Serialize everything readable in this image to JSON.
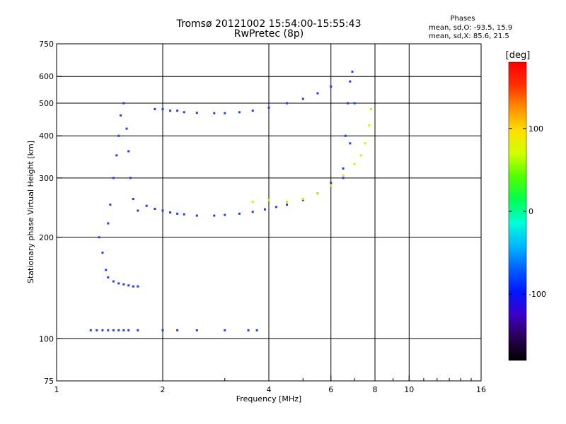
{
  "chart_data": {
    "type": "scatter",
    "title": "Tromsø 20121002 15:54:00-15:55:43",
    "subtitle": "RwPretec (8p)",
    "xlabel": "Frequency [MHz]",
    "ylabel": "Stationary phase Virtual Height [km]",
    "x_scale": "log",
    "y_scale": "log",
    "xlim": [
      1,
      16
    ],
    "ylim": [
      75,
      750
    ],
    "x_ticks": [
      1,
      2,
      4,
      6,
      8,
      10,
      16
    ],
    "y_ticks": [
      75,
      100,
      200,
      300,
      400,
      500,
      600,
      750
    ],
    "grid": true,
    "phases_box": {
      "title": "Phases",
      "line1": "mean, sd,O: -93.5, 15.9",
      "line2": "mean, sd,X:  85.6, 21.5"
    },
    "colorbar": {
      "label": "[deg]",
      "ticks": [
        100,
        0,
        -100
      ],
      "range": [
        -180,
        180
      ],
      "colors": [
        "#000000",
        "#2a0055",
        "#3c00c8",
        "#0018ff",
        "#0060ff",
        "#00b8ff",
        "#00ffd8",
        "#00ff50",
        "#50ff00",
        "#d0ff00",
        "#ffe000",
        "#ff9000",
        "#ff3000",
        "#ff0000"
      ]
    },
    "series": [
      {
        "color": "#1f3dff",
        "x": [
          1.25,
          1.3,
          1.35,
          1.4,
          1.45,
          1.5,
          1.55,
          1.6,
          1.7,
          2.0,
          2.2,
          2.5,
          3.0,
          3.5,
          3.7
        ],
        "y": [
          106,
          106,
          106,
          106,
          106,
          106,
          106,
          106,
          106,
          106,
          106,
          106,
          106,
          106,
          106
        ]
      },
      {
        "color": "#1f3dff",
        "x": [
          1.32,
          1.35,
          1.38,
          1.4,
          1.42,
          1.45,
          1.48,
          1.5,
          1.52,
          1.55,
          1.58,
          1.6,
          1.62,
          1.65,
          1.7
        ],
        "y": [
          200,
          180,
          160,
          220,
          250,
          300,
          350,
          400,
          460,
          500,
          420,
          360,
          300,
          260,
          240
        ]
      },
      {
        "color": "#1f3dff",
        "x": [
          1.4,
          1.45,
          1.5,
          1.55,
          1.6,
          1.65,
          1.7
        ],
        "y": [
          152,
          148,
          146,
          145,
          144,
          143,
          143
        ]
      },
      {
        "color": "#1f3dff",
        "x": [
          1.9,
          2.0,
          2.1,
          2.2,
          2.3,
          2.5,
          2.8,
          3.0,
          3.3,
          3.6,
          4.0,
          4.5,
          5.0,
          5.5,
          6.0
        ],
        "y": [
          480,
          480,
          475,
          475,
          470,
          468,
          467,
          467,
          470,
          475,
          485,
          500,
          515,
          535,
          560
        ]
      },
      {
        "color": "#1f3dff",
        "x": [
          1.8,
          1.9,
          2.0,
          2.1,
          2.2,
          2.3,
          2.5,
          2.8,
          3.0,
          3.3,
          3.6,
          3.9,
          4.2,
          4.5,
          5.0,
          5.5,
          6.0,
          6.5,
          6.8,
          7.0
        ],
        "y": [
          248,
          243,
          240,
          237,
          235,
          234,
          232,
          232,
          233,
          235,
          238,
          242,
          246,
          250,
          258,
          270,
          290,
          320,
          380,
          500
        ]
      },
      {
        "color": "#d8f000",
        "x": [
          3.6,
          4.0,
          4.5,
          5.0,
          5.5,
          6.0,
          6.5,
          7.0,
          7.3,
          7.5,
          7.7,
          7.8
        ],
        "y": [
          255,
          258,
          255,
          260,
          270,
          285,
          305,
          330,
          350,
          380,
          430,
          480
        ]
      },
      {
        "color": "#1f3dff",
        "x": [
          6.5,
          6.6,
          6.7,
          6.8,
          6.9
        ],
        "y": [
          300,
          400,
          500,
          580,
          620
        ]
      }
    ]
  }
}
